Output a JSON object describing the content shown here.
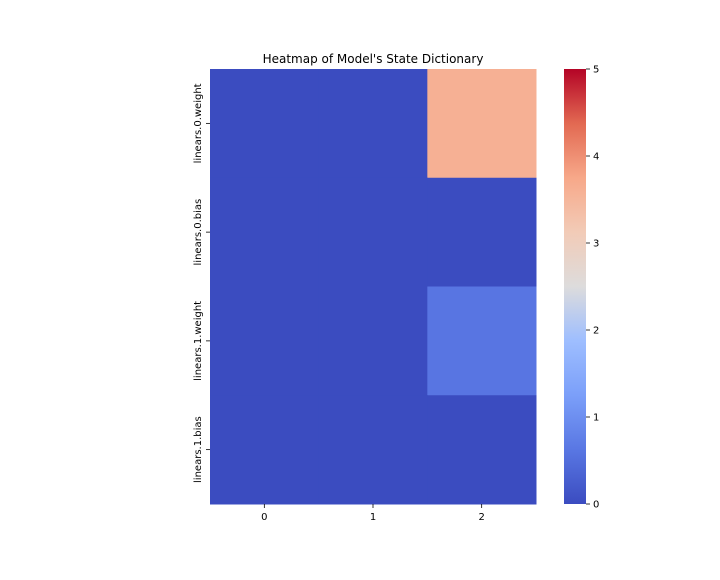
{
  "chart_data": {
    "type": "heatmap",
    "title": "Heatmap of Model's State Dictionary",
    "xlabel": "",
    "ylabel": "",
    "x_categories": [
      "0",
      "1",
      "2"
    ],
    "y_categories": [
      "linears.0.weight",
      "linears.0.bias",
      "linears.1.weight",
      "linears.1.bias"
    ],
    "values": [
      [
        0,
        0,
        3.6
      ],
      [
        0,
        0,
        0
      ],
      [
        0,
        0,
        0.6
      ],
      [
        0,
        0,
        0
      ]
    ],
    "colormap": "coolwarm",
    "vmin": 0,
    "vmax": 5,
    "colorbar": {
      "ticks": [
        0,
        1,
        2,
        3,
        4,
        5
      ],
      "tick_labels": [
        "0",
        "1",
        "2",
        "3",
        "4",
        "5"
      ]
    },
    "grid": false
  }
}
